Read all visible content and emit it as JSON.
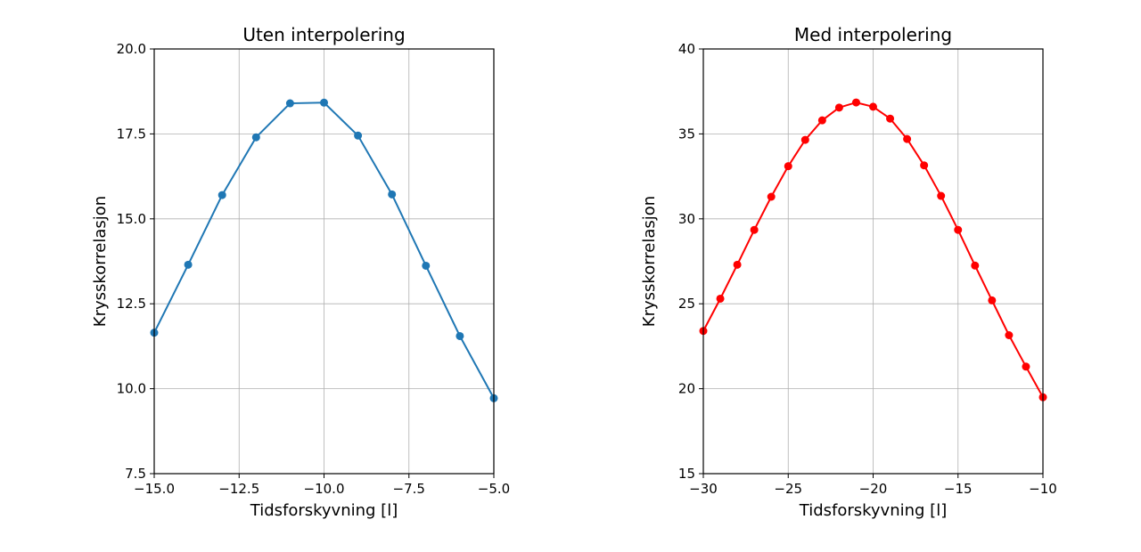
{
  "chart_data": [
    {
      "type": "line",
      "title": "Uten interpolering",
      "xlabel": "Tidsforskyvning [l]",
      "ylabel": "Krysskorrelasjon",
      "xlim": [
        -15,
        -5
      ],
      "ylim": [
        7.5,
        20
      ],
      "xticks": [
        -15,
        -12.5,
        -10,
        -7.5,
        -5
      ],
      "xtick_labels": [
        "−15.0",
        "−12.5",
        "−10.0",
        "−7.5",
        "−5.0"
      ],
      "yticks": [
        7.5,
        10,
        12.5,
        15,
        17.5,
        20
      ],
      "ytick_labels": [
        "7.5",
        "10.0",
        "12.5",
        "15.0",
        "17.5",
        "20.0"
      ],
      "grid": true,
      "series": [
        {
          "color": "#1f77b4",
          "marker": "circle",
          "x": [
            -15,
            -14,
            -13,
            -12,
            -11,
            -10,
            -9,
            -8,
            -7,
            -6,
            -5
          ],
          "y": [
            11.65,
            13.65,
            15.7,
            17.4,
            18.4,
            18.42,
            17.45,
            15.72,
            13.62,
            11.55,
            9.72
          ]
        }
      ]
    },
    {
      "type": "line",
      "title": "Med interpolering",
      "xlabel": "Tidsforskyvning [l]",
      "ylabel": "Krysskorrelasjon",
      "xlim": [
        -30,
        -10
      ],
      "ylim": [
        15,
        40
      ],
      "xticks": [
        -30,
        -25,
        -20,
        -15,
        -10
      ],
      "xtick_labels": [
        "−30",
        "−25",
        "−20",
        "−15",
        "−10"
      ],
      "yticks": [
        15,
        20,
        25,
        30,
        35,
        40
      ],
      "ytick_labels": [
        "15",
        "20",
        "25",
        "30",
        "35",
        "40"
      ],
      "grid": true,
      "series": [
        {
          "color": "#ff0000",
          "marker": "circle",
          "x": [
            -30,
            -29,
            -28,
            -27,
            -26,
            -25,
            -24,
            -23,
            -22,
            -21,
            -20,
            -19,
            -18,
            -17,
            -16,
            -15,
            -14,
            -13,
            -12,
            -11,
            -10
          ],
          "y": [
            23.4,
            25.3,
            27.3,
            29.35,
            31.3,
            33.1,
            34.65,
            35.8,
            36.55,
            36.85,
            36.6,
            35.9,
            34.7,
            33.15,
            31.35,
            29.35,
            27.25,
            25.2,
            23.15,
            21.3,
            19.5
          ]
        }
      ]
    }
  ]
}
